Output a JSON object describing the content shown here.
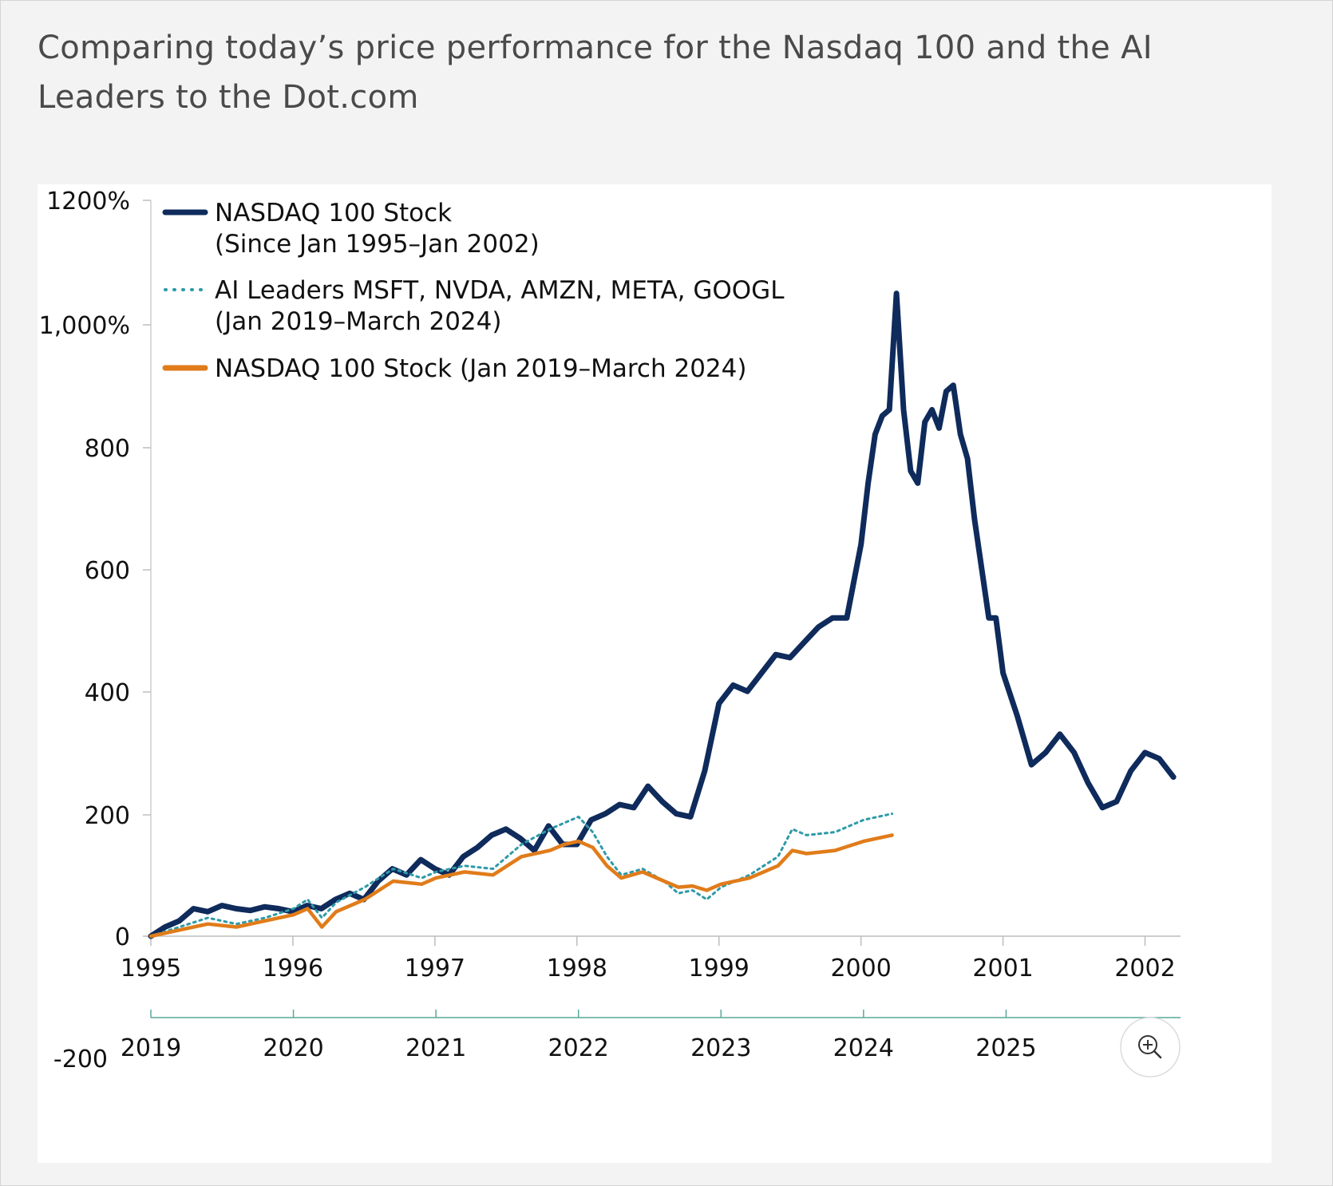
{
  "title": "Comparing today’s price performance for the Nasdaq 100 and the AI Leaders to the Dot.com",
  "chart_data": {
    "type": "line",
    "ylim": [
      -200,
      1200
    ],
    "y_tick_values": [
      1200,
      1000,
      800,
      600,
      400,
      200,
      0,
      -200
    ],
    "y_tick_labels": [
      "1200%",
      "1,000%",
      "800",
      "600",
      "400",
      "200",
      "0",
      "-200"
    ],
    "x_axis_top": {
      "range": [
        1995,
        2002.25
      ],
      "tick_labels": [
        "1995",
        "1996",
        "1997",
        "1998",
        "1999",
        "2000",
        "2001",
        "2002"
      ]
    },
    "x_axis_bottom": {
      "range": [
        2019,
        2026
      ],
      "tick_labels": [
        "2019",
        "2020",
        "2021",
        "2022",
        "2023",
        "2024",
        "2025"
      ]
    },
    "legend": [
      {
        "lines": [
          "NASDAQ 100 Stock",
          "(Since Jan 1995–Jan 2002)"
        ],
        "color": "#0f2b5c",
        "style": "solid"
      },
      {
        "lines": [
          "AI Leaders MSFT, NVDA, AMZN, META, GOOGL",
          "(Jan 2019–March 2024)"
        ],
        "color": "#2e9aa8",
        "style": "dotted"
      },
      {
        "lines": [
          "NASDAQ 100 Stock (Jan 2019–March 2024)"
        ],
        "color": "#e07c1a",
        "style": "solid"
      }
    ],
    "legend_position": "top-left",
    "series": [
      {
        "name": "NASDAQ 100 Stock (Since Jan 1995–Jan 2002)",
        "axis": "top",
        "color": "#0f2b5c",
        "x": [
          1995.0,
          1995.1,
          1995.2,
          1995.3,
          1995.4,
          1995.5,
          1995.6,
          1995.7,
          1995.8,
          1995.9,
          1996.0,
          1996.1,
          1996.2,
          1996.3,
          1996.4,
          1996.5,
          1996.6,
          1996.7,
          1996.8,
          1996.9,
          1997.0,
          1997.1,
          1997.2,
          1997.3,
          1997.4,
          1997.5,
          1997.6,
          1997.7,
          1997.8,
          1997.9,
          1998.0,
          1998.1,
          1998.2,
          1998.3,
          1998.4,
          1998.5,
          1998.6,
          1998.7,
          1998.8,
          1998.9,
          1999.0,
          1999.1,
          1999.2,
          1999.3,
          1999.4,
          1999.5,
          1999.6,
          1999.7,
          1999.8,
          1999.9,
          2000.0,
          2000.05,
          2000.1,
          2000.15,
          2000.2,
          2000.25,
          2000.3,
          2000.35,
          2000.4,
          2000.45,
          2000.5,
          2000.55,
          2000.6,
          2000.65,
          2000.7,
          2000.75,
          2000.8,
          2000.85,
          2000.9,
          2000.95,
          2001.0,
          2001.1,
          2001.2,
          2001.3,
          2001.4,
          2001.5,
          2001.6,
          2001.7,
          2001.8,
          2001.9,
          2002.0,
          2002.1,
          2002.2
        ],
        "y": [
          0,
          15,
          25,
          45,
          40,
          50,
          45,
          42,
          48,
          45,
          40,
          50,
          45,
          60,
          70,
          60,
          90,
          110,
          100,
          125,
          110,
          100,
          130,
          145,
          165,
          175,
          160,
          140,
          180,
          150,
          150,
          190,
          200,
          215,
          210,
          245,
          220,
          200,
          195,
          270,
          380,
          410,
          400,
          430,
          460,
          455,
          480,
          505,
          520,
          520,
          640,
          740,
          820,
          850,
          860,
          1050,
          860,
          760,
          740,
          840,
          860,
          830,
          890,
          900,
          820,
          780,
          680,
          600,
          520,
          520,
          430,
          360,
          280,
          300,
          330,
          300,
          250,
          210,
          220,
          270,
          300,
          290,
          260
        ]
      },
      {
        "name": "AI Leaders MSFT, NVDA, AMZN, META, GOOGL (Jan 2019–March 2024)",
        "axis": "bottom",
        "color": "#2e9aa8",
        "x": [
          2019.0,
          2019.2,
          2019.4,
          2019.6,
          2019.8,
          2020.0,
          2020.1,
          2020.2,
          2020.3,
          2020.5,
          2020.7,
          2020.9,
          2021.0,
          2021.2,
          2021.4,
          2021.6,
          2021.8,
          2021.9,
          2022.0,
          2022.1,
          2022.2,
          2022.3,
          2022.45,
          2022.6,
          2022.7,
          2022.8,
          2022.9,
          2023.0,
          2023.2,
          2023.4,
          2023.5,
          2023.6,
          2023.8,
          2024.0,
          2024.2
        ],
        "y": [
          0,
          15,
          30,
          20,
          30,
          45,
          60,
          30,
          55,
          80,
          110,
          95,
          105,
          115,
          110,
          150,
          175,
          185,
          195,
          170,
          130,
          100,
          110,
          90,
          70,
          75,
          60,
          80,
          100,
          130,
          175,
          165,
          170,
          190,
          200
        ]
      },
      {
        "name": "NASDAQ 100 Stock (Jan 2019–March 2024)",
        "axis": "bottom",
        "color": "#e07c1a",
        "x": [
          2019.0,
          2019.2,
          2019.4,
          2019.6,
          2019.8,
          2020.0,
          2020.1,
          2020.2,
          2020.3,
          2020.5,
          2020.7,
          2020.9,
          2021.0,
          2021.2,
          2021.4,
          2021.6,
          2021.8,
          2021.9,
          2022.0,
          2022.1,
          2022.2,
          2022.3,
          2022.45,
          2022.6,
          2022.7,
          2022.8,
          2022.9,
          2023.0,
          2023.2,
          2023.4,
          2023.5,
          2023.6,
          2023.8,
          2024.0,
          2024.2
        ],
        "y": [
          0,
          10,
          20,
          15,
          25,
          35,
          45,
          15,
          40,
          60,
          90,
          85,
          95,
          105,
          100,
          130,
          140,
          150,
          155,
          145,
          115,
          95,
          105,
          90,
          80,
          82,
          75,
          85,
          95,
          115,
          140,
          135,
          140,
          155,
          165
        ]
      }
    ]
  }
}
